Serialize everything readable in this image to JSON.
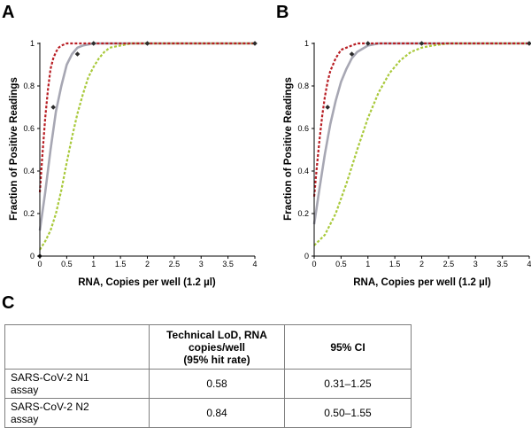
{
  "panels": {
    "a": "A",
    "b": "B",
    "c": "C"
  },
  "colors": {
    "red": "#b81e24",
    "gray": "#a7a7b3",
    "green": "#a9c93b",
    "marker": "#2b2b2b"
  },
  "chart_data": [
    {
      "type": "line",
      "panel": "A",
      "title": "",
      "xlabel": "RNA, Copies per well (1.2 µl)",
      "ylabel": "Fraction of Positive Readings",
      "xlim": [
        0,
        4
      ],
      "ylim": [
        0,
        1
      ],
      "xticks": [
        "0",
        "0.5",
        "1",
        "1.5",
        "2",
        "2.5",
        "3",
        "3.5",
        "4"
      ],
      "yticks": [
        "0",
        "0.2",
        "0.4",
        "0.6",
        "0.8",
        "1"
      ],
      "grid": false,
      "observed_points": {
        "x": [
          0,
          0.25,
          0.7,
          1,
          2,
          4
        ],
        "y": [
          0,
          0.7,
          0.95,
          1,
          1,
          1
        ]
      },
      "series": [
        {
          "name": "fit",
          "style": "solid",
          "color": "gray",
          "x": [
            0,
            0.1,
            0.2,
            0.3,
            0.4,
            0.5,
            0.6,
            0.7,
            0.8,
            1,
            1.2,
            1.5,
            2,
            3,
            4
          ],
          "y": [
            0.12,
            0.3,
            0.5,
            0.68,
            0.8,
            0.9,
            0.95,
            0.98,
            0.99,
            1,
            1,
            1,
            1,
            1,
            1
          ]
        },
        {
          "name": "upper 95% CI",
          "style": "dashed",
          "color": "red",
          "x": [
            0,
            0.05,
            0.1,
            0.15,
            0.2,
            0.25,
            0.3,
            0.35,
            0.4,
            0.5,
            0.6,
            0.8,
            1,
            2,
            4
          ],
          "y": [
            0.3,
            0.48,
            0.65,
            0.78,
            0.88,
            0.93,
            0.96,
            0.98,
            0.99,
            1,
            1,
            1,
            1,
            1,
            1
          ]
        },
        {
          "name": "lower 95% CI",
          "style": "dashed",
          "color": "green",
          "x": [
            0,
            0.1,
            0.2,
            0.3,
            0.4,
            0.5,
            0.6,
            0.7,
            0.8,
            0.9,
            1.0,
            1.1,
            1.2,
            1.3,
            1.5,
            1.7,
            2,
            3,
            4
          ],
          "y": [
            0.03,
            0.07,
            0.12,
            0.2,
            0.31,
            0.44,
            0.56,
            0.67,
            0.76,
            0.84,
            0.89,
            0.93,
            0.96,
            0.98,
            0.99,
            1,
            1,
            1,
            1
          ]
        }
      ]
    },
    {
      "type": "line",
      "panel": "B",
      "title": "",
      "xlabel": "RNA, Copies per well (1.2 µl)",
      "ylabel": "Fraction of Positive Readings",
      "xlim": [
        0,
        4
      ],
      "ylim": [
        0,
        1
      ],
      "xticks": [
        "0",
        "0.5",
        "1",
        "1.5",
        "2",
        "2.5",
        "3",
        "3.5",
        "4"
      ],
      "yticks": [
        "0",
        "0.2",
        "0.4",
        "0.6",
        "0.8",
        "1"
      ],
      "grid": false,
      "observed_points": {
        "x": [
          0.25,
          0.7,
          1,
          2,
          4
        ],
        "y": [
          0.7,
          0.95,
          1,
          1,
          1
        ]
      },
      "series": [
        {
          "name": "fit",
          "style": "solid",
          "color": "gray",
          "x": [
            0,
            0.1,
            0.2,
            0.3,
            0.4,
            0.5,
            0.6,
            0.7,
            0.8,
            1,
            1.2,
            1.5,
            2,
            3,
            4
          ],
          "y": [
            0.15,
            0.32,
            0.48,
            0.62,
            0.73,
            0.82,
            0.88,
            0.93,
            0.96,
            0.99,
            1,
            1,
            1,
            1,
            1
          ]
        },
        {
          "name": "upper 95% CI",
          "style": "dashed",
          "color": "red",
          "x": [
            0,
            0.05,
            0.1,
            0.15,
            0.2,
            0.25,
            0.3,
            0.4,
            0.5,
            0.6,
            0.7,
            0.8,
            1,
            2,
            4
          ],
          "y": [
            0.28,
            0.42,
            0.55,
            0.66,
            0.75,
            0.82,
            0.87,
            0.93,
            0.97,
            0.98,
            0.99,
            1,
            1,
            1,
            1
          ]
        },
        {
          "name": "lower 95% CI",
          "style": "dashed",
          "color": "green",
          "x": [
            0,
            0.2,
            0.4,
            0.6,
            0.8,
            1.0,
            1.2,
            1.4,
            1.6,
            1.8,
            2.0,
            2.2,
            2.5,
            3,
            4
          ],
          "y": [
            0.05,
            0.1,
            0.2,
            0.34,
            0.5,
            0.65,
            0.77,
            0.86,
            0.92,
            0.96,
            0.98,
            0.99,
            1,
            1,
            1
          ]
        }
      ]
    }
  ],
  "table": {
    "header": {
      "empty": "",
      "lod_lines": [
        "Technical LoD, RNA",
        "copies/well",
        "(95% hit rate)"
      ],
      "ci": "95% CI"
    },
    "rows": [
      {
        "assay_lines": [
          "SARS-CoV-2 N1",
          "assay"
        ],
        "lod": "0.58",
        "ci": "0.31–1.25"
      },
      {
        "assay_lines": [
          "SARS-CoV-2 N2",
          "assay"
        ],
        "lod": "0.84",
        "ci": "0.50–1.55"
      }
    ]
  }
}
